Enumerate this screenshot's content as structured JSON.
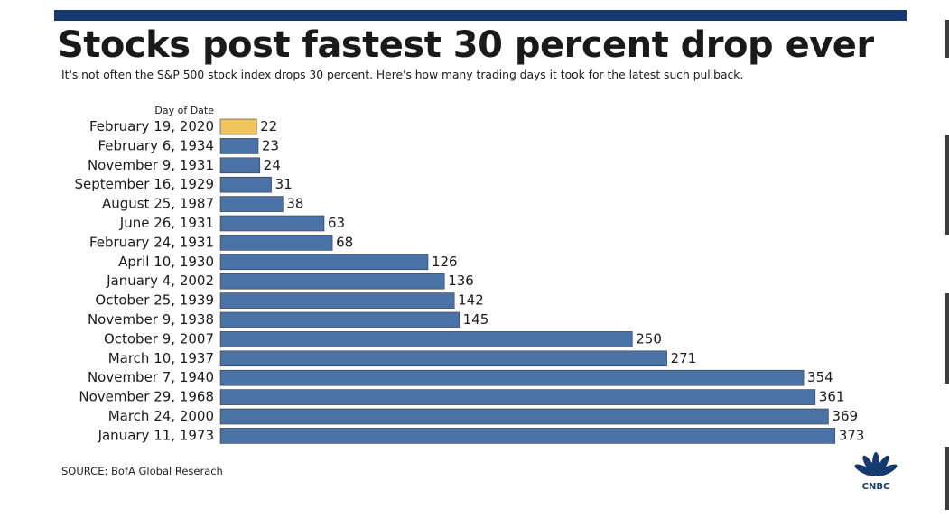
{
  "title": "Stocks post fastest 30 percent drop ever",
  "subtitle": "It's not often the S&P 500 stock index drops 30 percent. Here's how many trading days it took for the latest such pullback.",
  "source": "SOURCE: BofA Global Reserach",
  "brand": {
    "name": "CNBC",
    "logo_icon": "cnbc-peacock-icon"
  },
  "colors": {
    "accent_bar": "#163a70",
    "bar": "#4a72a6",
    "highlight_bar": "#f0c55c",
    "text": "#1a1a1a"
  },
  "chart_data": {
    "type": "bar",
    "orientation": "horizontal",
    "category_header": "Day of Date",
    "categories": [
      "February 19, 2020",
      "February 6, 1934",
      "November 9, 1931",
      "September 16, 1929",
      "August 25, 1987",
      "June 26, 1931",
      "February 24, 1931",
      "April 10, 1930",
      "January 4, 2002",
      "October 25, 1939",
      "November 9, 1938",
      "October 9, 2007",
      "March 10, 1937",
      "November 7, 1940",
      "November 29, 1968",
      "March 24, 2000",
      "January 11, 1973"
    ],
    "values": [
      22,
      23,
      24,
      31,
      38,
      63,
      68,
      126,
      136,
      142,
      145,
      250,
      271,
      354,
      361,
      369,
      373
    ],
    "highlight": "February 19, 2020",
    "data_labels": true,
    "grid": false,
    "legend": "none",
    "xlim": [
      0,
      373
    ]
  }
}
